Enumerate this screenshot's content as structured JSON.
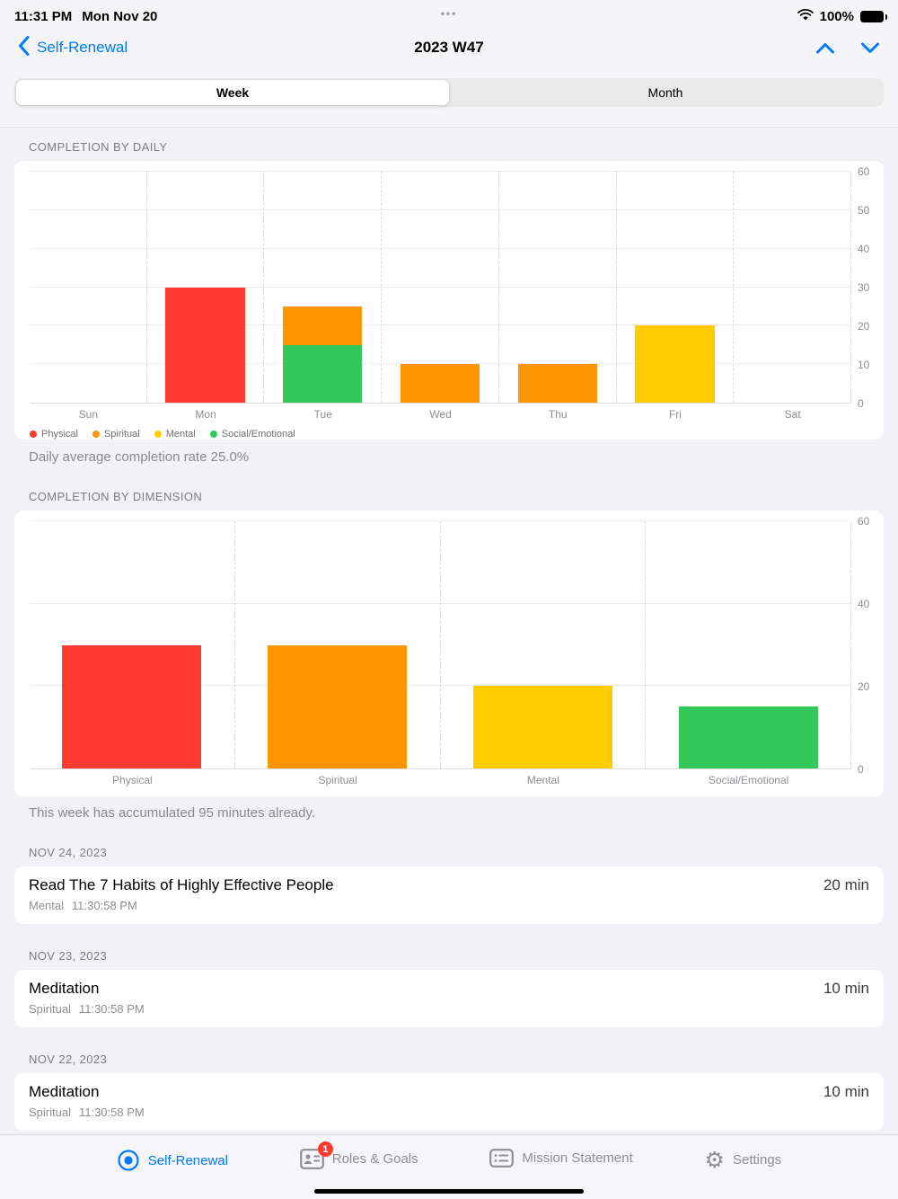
{
  "status_bar": {
    "time": "11:31 PM",
    "date": "Mon Nov 20",
    "battery_percent": "100%",
    "multitask_dots": "•••"
  },
  "nav": {
    "back_label": "Self-Renewal",
    "title": "2023 W47"
  },
  "segmented_control": {
    "options": [
      "Week",
      "Month"
    ],
    "selected": "Week"
  },
  "daily_section": {
    "header": "COMPLETION BY DAILY",
    "caption": "Daily average completion rate 25.0%"
  },
  "dimension_section": {
    "header": "COMPLETION BY DIMENSION",
    "caption": "This week has accumulated 95 minutes already."
  },
  "legend": [
    {
      "label": "Physical",
      "color": "#FF3B30"
    },
    {
      "label": "Spiritual",
      "color": "#FF9500"
    },
    {
      "label": "Mental",
      "color": "#FFCC00"
    },
    {
      "label": "Social/Emotional",
      "color": "#34C759"
    }
  ],
  "chart_data": [
    {
      "type": "bar",
      "stacked": true,
      "title": "COMPLETION BY DAILY",
      "categories": [
        "Sun",
        "Mon",
        "Tue",
        "Wed",
        "Thu",
        "Fri",
        "Sat"
      ],
      "series": [
        {
          "name": "Physical",
          "color": "#FF3B30",
          "values": [
            0,
            30,
            0,
            0,
            0,
            0,
            0
          ]
        },
        {
          "name": "Spiritual",
          "color": "#FF9500",
          "values": [
            0,
            0,
            10,
            10,
            10,
            0,
            0
          ]
        },
        {
          "name": "Mental",
          "color": "#FFCC00",
          "values": [
            0,
            0,
            0,
            0,
            0,
            20,
            0
          ]
        },
        {
          "name": "Social/Emotional",
          "color": "#34C759",
          "values": [
            0,
            0,
            15,
            0,
            0,
            0,
            0
          ]
        }
      ],
      "ylim": [
        0,
        60
      ],
      "yticks": [
        0,
        10,
        20,
        30,
        40,
        50,
        60
      ],
      "legend_position": "bottom-left",
      "grid": true
    },
    {
      "type": "bar",
      "title": "COMPLETION BY DIMENSION",
      "categories": [
        "Physical",
        "Spiritual",
        "Mental",
        "Social/Emotional"
      ],
      "values": [
        30,
        30,
        20,
        15
      ],
      "colors": [
        "#FF3B30",
        "#FF9500",
        "#FFCC00",
        "#34C759"
      ],
      "ylim": [
        0,
        60
      ],
      "yticks": [
        0,
        20,
        40,
        60
      ],
      "grid": true
    }
  ],
  "entries": [
    {
      "date": "NOV 24, 2023",
      "title": "Read The 7 Habits of Highly Effective People",
      "duration": "20 min",
      "dimension": "Mental",
      "time": "11:30:58 PM"
    },
    {
      "date": "NOV 23, 2023",
      "title": "Meditation",
      "duration": "10 min",
      "dimension": "Spiritual",
      "time": "11:30:58 PM"
    },
    {
      "date": "NOV 22, 2023",
      "title": "Meditation",
      "duration": "10 min",
      "dimension": "Spiritual",
      "time": "11:30:58 PM"
    }
  ],
  "tab_bar": {
    "items": [
      {
        "label": "Self-Renewal",
        "icon": "target-icon",
        "active": true
      },
      {
        "label": "Roles & Goals",
        "icon": "roles-card-icon",
        "active": false,
        "badge": "1"
      },
      {
        "label": "Mission Statement",
        "icon": "list-icon",
        "active": false
      },
      {
        "label": "Settings",
        "icon": "gear-icon",
        "active": false
      }
    ]
  },
  "colors": {
    "accent": "#007AFF",
    "physical": "#FF3B30",
    "spiritual": "#FF9500",
    "mental": "#FFCC00",
    "social_emotional": "#34C759",
    "badge": "#FF3B30"
  }
}
